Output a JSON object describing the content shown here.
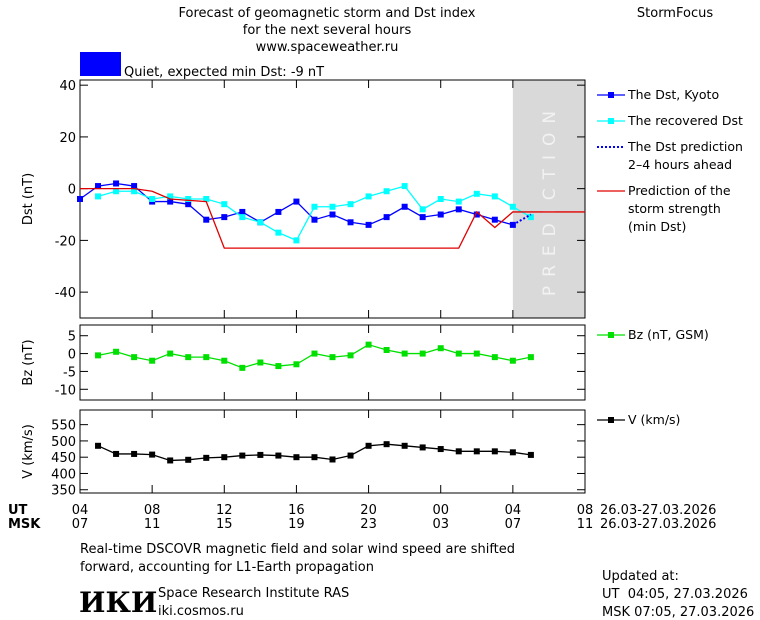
{
  "header": {
    "title_lines": [
      "Forecast of geomagnetic storm and Dst index",
      "for the next several hours",
      "www.spaceweather.ru"
    ],
    "brand": "StormFocus",
    "status": "Quiet, expected min Dst: -9 nT",
    "status_color": "#0000ff"
  },
  "chart_data": [
    {
      "type": "line",
      "y_label": "Dst (nT)",
      "xlim": [
        0,
        28
      ],
      "ylim": [
        -50,
        42
      ],
      "yticks": [
        40,
        20,
        0,
        -20,
        -40
      ],
      "prediction_region": {
        "x": [
          24,
          28
        ],
        "label": "PREDICTION"
      },
      "series": [
        {
          "name": "The Dst, Kyoto",
          "color": "#0000ff",
          "markers": true,
          "x": [
            0,
            1,
            2,
            3,
            4,
            5,
            6,
            7,
            8,
            9,
            10,
            11,
            12,
            13,
            14,
            15,
            16,
            17,
            18,
            19,
            20,
            21,
            22,
            23,
            24
          ],
          "values": [
            -4,
            1,
            2,
            1,
            -5,
            -5,
            -6,
            -12,
            -11,
            -9,
            -13,
            -9,
            -5,
            -12,
            -10,
            -13,
            -14,
            -11,
            -7,
            -11,
            -10,
            -8,
            -10,
            -12,
            -14
          ]
        },
        {
          "name": "The recovered Dst",
          "color": "#00ffff",
          "markers": true,
          "x": [
            1,
            2,
            3,
            4,
            5,
            6,
            7,
            8,
            9,
            10,
            11,
            12,
            13,
            14,
            15,
            16,
            17,
            18,
            19,
            20,
            21,
            22,
            23,
            24,
            25
          ],
          "values": [
            -3,
            -1,
            -1,
            -4,
            -3,
            -4,
            -4,
            -6,
            -11,
            -13,
            -17,
            -20,
            -7,
            -7,
            -6,
            -3,
            -1,
            1,
            -8,
            -4,
            -5,
            -2,
            -3,
            -7,
            -11
          ]
        },
        {
          "name": "The Dst prediction\n2–4 hours ahead",
          "color": "#0000ff",
          "dotted": true,
          "x": [
            24,
            25
          ],
          "values": [
            -14,
            -10
          ]
        },
        {
          "name": "Prediction of the\nstorm strength\n(min Dst)",
          "color": "#e00000",
          "x": [
            0,
            3,
            4,
            5,
            7,
            8,
            21,
            22,
            23,
            24,
            28
          ],
          "values": [
            0,
            0,
            -1,
            -4,
            -5,
            -23,
            -23,
            -9,
            -15,
            -9,
            -9
          ]
        }
      ]
    },
    {
      "type": "line",
      "y_label": "Bz (nT)",
      "xlim": [
        0,
        28
      ],
      "ylim": [
        -13,
        8
      ],
      "yticks": [
        5,
        0,
        -5,
        -10
      ],
      "series": [
        {
          "name": "Bz (nT, GSM)",
          "color": "#00e000",
          "markers": true,
          "x": [
            1,
            2,
            3,
            4,
            5,
            6,
            7,
            8,
            9,
            10,
            11,
            12,
            13,
            14,
            15,
            16,
            17,
            18,
            19,
            20,
            21,
            22,
            23,
            24,
            25
          ],
          "values": [
            -0.5,
            0.5,
            -1,
            -2,
            0,
            -1,
            -1,
            -2,
            -4,
            -2.5,
            -3.5,
            -3,
            0,
            -1,
            -0.5,
            2.5,
            1,
            0,
            0,
            1.5,
            0,
            0,
            -1,
            -2,
            -1
          ]
        }
      ]
    },
    {
      "type": "line",
      "y_label": "V (km/s)",
      "xlim": [
        0,
        28
      ],
      "ylim": [
        340,
        595
      ],
      "yticks": [
        550,
        500,
        450,
        400,
        350
      ],
      "xticks": [
        {
          "value": 0,
          "label": "04"
        },
        {
          "value": 4,
          "label": "08"
        },
        {
          "value": 8,
          "label": "12"
        },
        {
          "value": 12,
          "label": "16"
        },
        {
          "value": 16,
          "label": "20"
        },
        {
          "value": 20,
          "label": "00"
        },
        {
          "value": 24,
          "label": "04"
        },
        {
          "value": 28,
          "label": "08"
        }
      ],
      "xticks_msk": [
        {
          "value": 0,
          "label": "07"
        },
        {
          "value": 4,
          "label": "11"
        },
        {
          "value": 8,
          "label": "15"
        },
        {
          "value": 12,
          "label": "19"
        },
        {
          "value": 16,
          "label": "23"
        },
        {
          "value": 20,
          "label": "03"
        },
        {
          "value": 24,
          "label": "07"
        },
        {
          "value": 28,
          "label": "11"
        }
      ],
      "x_row_labels": [
        "UT",
        "MSK"
      ],
      "x_date_range": [
        "26.03-27.03.2026",
        "26.03-27.03.2026"
      ],
      "series": [
        {
          "name": "V (km/s)",
          "color": "#000000",
          "markers": true,
          "x": [
            1,
            2,
            3,
            4,
            5,
            6,
            7,
            8,
            9,
            10,
            11,
            12,
            13,
            14,
            15,
            16,
            17,
            18,
            19,
            20,
            21,
            22,
            23,
            24,
            25
          ],
          "values": [
            485,
            460,
            460,
            458,
            440,
            442,
            448,
            450,
            455,
            457,
            455,
            450,
            450,
            443,
            455,
            485,
            490,
            485,
            480,
            475,
            468,
            468,
            468,
            465,
            457
          ]
        }
      ]
    }
  ],
  "footer": {
    "note_lines": [
      "Real-time DSCOVR magnetic field and solar wind speed are shifted",
      "forward, accounting for L1-Earth propagation"
    ],
    "logo": "ИКИ",
    "institute": "Space Research Institute RAS",
    "site": "iki.cosmos.ru",
    "updated_label": "Updated at:",
    "updated_ut": "UT  04:05, 27.03.2026",
    "updated_msk": "MSK 07:05, 27.03.2026"
  }
}
